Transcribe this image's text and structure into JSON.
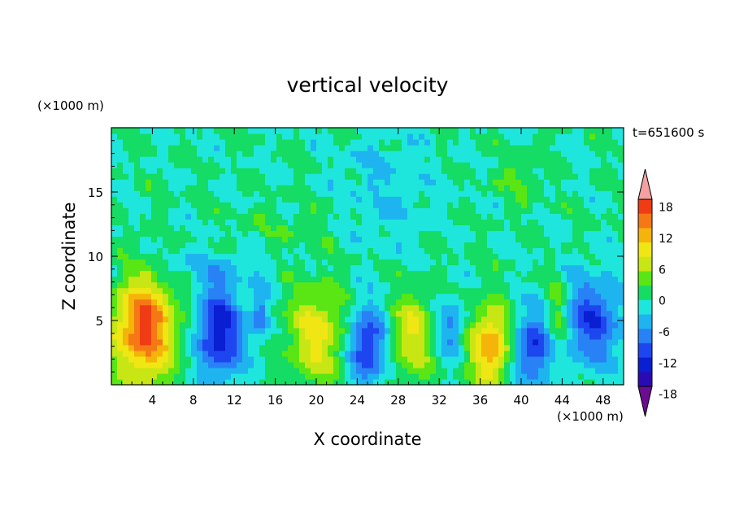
{
  "chart_data": {
    "type": "heatmap",
    "title": "vertical velocity",
    "xlabel": "X coordinate",
    "ylabel": "Z coordinate",
    "x_unit": "(×1000 m)",
    "y_unit": "(×1000 m)",
    "time_label": "t=651600 s",
    "xlim": [
      0,
      50
    ],
    "ylim": [
      0,
      20
    ],
    "x_ticks": [
      4,
      8,
      12,
      16,
      20,
      24,
      28,
      32,
      36,
      40,
      44,
      48
    ],
    "y_ticks": [
      5,
      10,
      15
    ],
    "colorbar": {
      "levels": [
        -21,
        -18,
        -15,
        -12,
        -9,
        -6,
        -3,
        0,
        3,
        6,
        9,
        12,
        15,
        18,
        21
      ],
      "tick_labels": [
        18,
        12,
        6,
        0,
        -6,
        -12,
        -18
      ],
      "colors": [
        "#6a0d8f",
        "#2a0ab4",
        "#0a1ed2",
        "#1e46f0",
        "#2882f5",
        "#1eb4f0",
        "#1ee6dc",
        "#14dc64",
        "#5ae614",
        "#c8e614",
        "#f0e614",
        "#f5b40a",
        "#f57814",
        "#f03c14",
        "#f5a0a0"
      ],
      "extend": "both"
    },
    "cells": [
      {
        "x": 3.2,
        "z": 4.5,
        "value": 19,
        "sx": 2.2,
        "sz": 3.0
      },
      {
        "x": 10.5,
        "z": 4.0,
        "value": -14,
        "sx": 1.6,
        "sz": 2.6
      },
      {
        "x": 14.5,
        "z": 5.5,
        "value": -8,
        "sx": 0.6,
        "sz": 1.4
      },
      {
        "x": 20.0,
        "z": 4.0,
        "value": 10,
        "sx": 2.0,
        "sz": 2.8
      },
      {
        "x": 25.0,
        "z": 3.0,
        "value": -13,
        "sx": 1.3,
        "sz": 2.2
      },
      {
        "x": 29.5,
        "z": 4.0,
        "value": 9,
        "sx": 1.6,
        "sz": 2.5
      },
      {
        "x": 33.0,
        "z": 4.5,
        "value": -8,
        "sx": 1.0,
        "sz": 1.6
      },
      {
        "x": 37.0,
        "z": 3.0,
        "value": 15,
        "sx": 1.4,
        "sz": 2.2
      },
      {
        "x": 41.0,
        "z": 2.8,
        "value": -12,
        "sx": 1.3,
        "sz": 2.0
      },
      {
        "x": 43.5,
        "z": 5.5,
        "value": 6,
        "sx": 0.7,
        "sz": 2.2
      },
      {
        "x": 47.0,
        "z": 5.0,
        "value": -11,
        "sx": 2.0,
        "sz": 2.5
      },
      {
        "x": 26.5,
        "z": 15.5,
        "value": -3,
        "sx": 3.0,
        "sz": 3.5
      },
      {
        "x": 40.0,
        "z": 16.0,
        "value": 3,
        "sx": 1.8,
        "sz": 1.5
      },
      {
        "x": 17.5,
        "z": 12.0,
        "value": 2,
        "sx": 4.0,
        "sz": 1.5
      },
      {
        "x": 8.0,
        "z": 9.0,
        "value": -3,
        "sx": 6.0,
        "sz": 1.2
      }
    ]
  }
}
